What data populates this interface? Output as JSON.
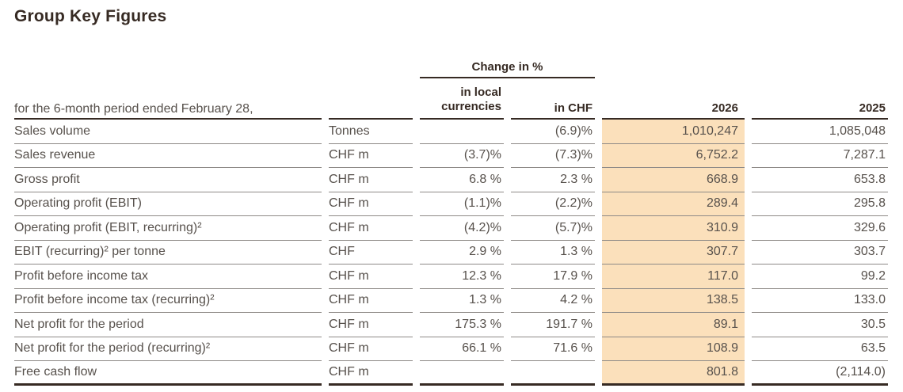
{
  "title": "Group Key Figures",
  "table": {
    "period_label": "for the 6-month period ended February 28,",
    "change_header": "Change in %",
    "columns": {
      "local": "in local\ncurrencies",
      "chf": "in CHF",
      "y2026": "2026",
      "y2025": "2025"
    },
    "rows": [
      {
        "label": "Sales volume",
        "unit": "Tonnes",
        "local": "",
        "chf": "(6.9)%",
        "y2026": "1,010,247",
        "y2025": "1,085,048"
      },
      {
        "label": "Sales revenue",
        "unit": "CHF m",
        "local": "(3.7)%",
        "chf": "(7.3)%",
        "y2026": "6,752.2",
        "y2025": "7,287.1"
      },
      {
        "label": "Gross profit",
        "unit": "CHF m",
        "local": "6.8 %",
        "chf": "2.3 %",
        "y2026": "668.9",
        "y2025": "653.8"
      },
      {
        "label": "Operating profit (EBIT)",
        "unit": "CHF m",
        "local": "(1.1)%",
        "chf": "(2.2)%",
        "y2026": "289.4",
        "y2025": "295.8"
      },
      {
        "label": "Operating profit (EBIT, recurring)²",
        "unit": "CHF m",
        "local": "(4.2)%",
        "chf": "(5.7)%",
        "y2026": "310.9",
        "y2025": "329.6"
      },
      {
        "label": "EBIT (recurring)² per tonne",
        "unit": "CHF",
        "local": "2.9 %",
        "chf": "1.3 %",
        "y2026": "307.7",
        "y2025": "303.7"
      },
      {
        "label": "Profit before income tax",
        "unit": "CHF m",
        "local": "12.3 %",
        "chf": "17.9 %",
        "y2026": "117.0",
        "y2025": "99.2"
      },
      {
        "label": "Profit before income tax (recurring)²",
        "unit": "CHF m",
        "local": "1.3 %",
        "chf": "4.2 %",
        "y2026": "138.5",
        "y2025": "133.0"
      },
      {
        "label": "Net profit for the period",
        "unit": "CHF m",
        "local": "175.3 %",
        "chf": "191.7 %",
        "y2026": "89.1",
        "y2025": "30.5"
      },
      {
        "label": "Net profit for the period (recurring)²",
        "unit": "CHF m",
        "local": "66.1 %",
        "chf": "71.6 %",
        "y2026": "108.9",
        "y2025": "63.5"
      },
      {
        "label": "Free cash flow",
        "unit": "CHF m",
        "local": "",
        "chf": "",
        "y2026": "801.8",
        "y2025": "(2,114.0)"
      }
    ]
  },
  "colors": {
    "highlight_2026_column": "#fbe0bb",
    "dark_text": "#362a23",
    "body_text": "#57514c",
    "rule_dark": "#362a23",
    "rule_light": "#8e8a87",
    "background": "#ffffff"
  }
}
